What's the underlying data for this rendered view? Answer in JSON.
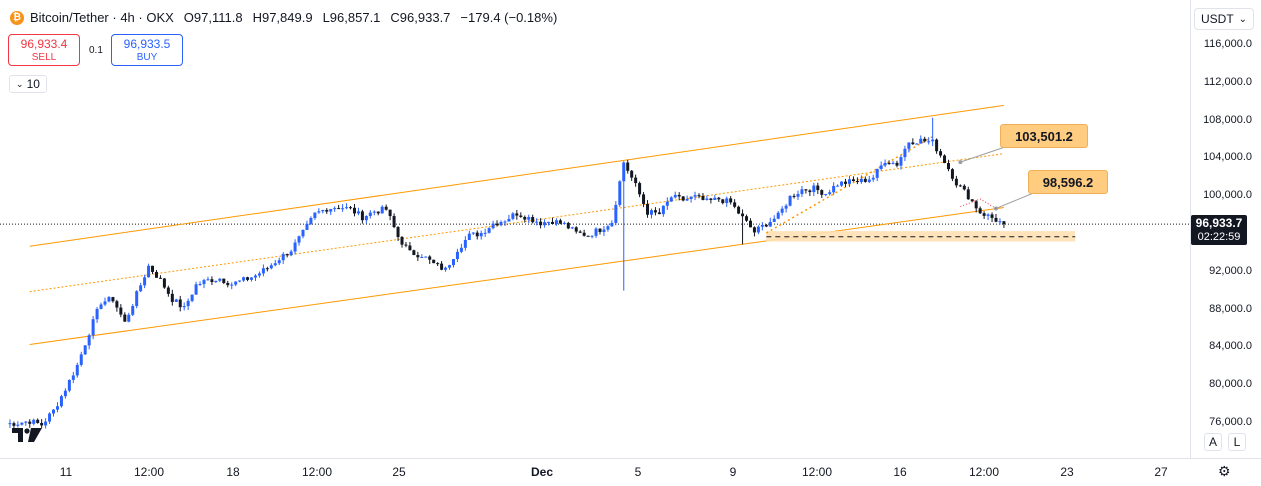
{
  "header": {
    "symbol_title": "Bitcoin/Tether · 4h · OKX",
    "open": "O97,111.8",
    "high": "H97,849.9",
    "low": "L96,857.1",
    "close": "C96,933.7",
    "change": "−179.4 (−0.18%)"
  },
  "trade": {
    "sell_price": "96,933.4",
    "sell_label": "SELL",
    "buy_price": "96,933.5",
    "buy_label": "BUY",
    "quantity": "0.1"
  },
  "interval_selector": "10",
  "currency": "USDT",
  "current_price": {
    "value": "96,933.7",
    "countdown": "02:22:59"
  },
  "price_axis_labels": [
    "116,000.0",
    "112,000.0",
    "108,000.0",
    "104,000.0",
    "100,000.0",
    "96,000.0",
    "92,000.0",
    "88,000.0",
    "84,000.0",
    "80,000.0",
    "76,000.0"
  ],
  "time_axis_labels": [
    {
      "label": "11",
      "bold": false
    },
    {
      "label": "12:00",
      "bold": false
    },
    {
      "label": "18",
      "bold": false
    },
    {
      "label": "12:00",
      "bold": false
    },
    {
      "label": "25",
      "bold": false
    },
    {
      "label": "Dec",
      "bold": true
    },
    {
      "label": "5",
      "bold": false
    },
    {
      "label": "9",
      "bold": false
    },
    {
      "label": "12:00",
      "bold": false
    },
    {
      "label": "16",
      "bold": false
    },
    {
      "label": "12:00",
      "bold": false
    },
    {
      "label": "23",
      "bold": false
    },
    {
      "label": "27",
      "bold": false
    }
  ],
  "scale_buttons": {
    "auto": "A",
    "log": "L"
  },
  "annotations": [
    {
      "text": "103,501.2"
    },
    {
      "text": "98,596.2"
    }
  ],
  "colors": {
    "up": "#2962ff",
    "down": "#131722",
    "channel": "#ff9800",
    "zone": "#ffe0b2",
    "sell": "#f23645",
    "buy": "#2962ff"
  },
  "chart_data": {
    "type": "candlestick",
    "symbol": "Bitcoin/Tether",
    "timeframe": "4h",
    "exchange": "OKX",
    "ylim": [
      73500,
      118500
    ],
    "last_close": 96933.7,
    "anchors": [
      [
        0,
        75800
      ],
      [
        3,
        75900
      ],
      [
        6,
        76100
      ],
      [
        9,
        75700
      ],
      [
        12,
        77200
      ],
      [
        15,
        79500
      ],
      [
        18,
        82000
      ],
      [
        21,
        85500
      ],
      [
        24,
        88700
      ],
      [
        27,
        89000
      ],
      [
        30,
        86500
      ],
      [
        33,
        89500
      ],
      [
        36,
        92500
      ],
      [
        39,
        91000
      ],
      [
        42,
        89000
      ],
      [
        45,
        88000
      ],
      [
        48,
        90500
      ],
      [
        51,
        91000
      ],
      [
        54,
        91200
      ],
      [
        57,
        90600
      ],
      [
        60,
        91000
      ],
      [
        63,
        91500
      ],
      [
        66,
        92300
      ],
      [
        69,
        93300
      ],
      [
        72,
        94200
      ],
      [
        75,
        96000
      ],
      [
        78,
        98000
      ],
      [
        81,
        98600
      ],
      [
        84,
        98800
      ],
      [
        87,
        98500
      ],
      [
        90,
        97700
      ],
      [
        93,
        98300
      ],
      [
        96,
        98500
      ],
      [
        99,
        95600
      ],
      [
        102,
        93900
      ],
      [
        105,
        93700
      ],
      [
        108,
        92700
      ],
      [
        111,
        92100
      ],
      [
        114,
        94300
      ],
      [
        117,
        95700
      ],
      [
        120,
        96000
      ],
      [
        123,
        97000
      ],
      [
        126,
        97400
      ],
      [
        129,
        98100
      ],
      [
        132,
        97600
      ],
      [
        135,
        97100
      ],
      [
        138,
        97300
      ],
      [
        141,
        96900
      ],
      [
        144,
        96000
      ],
      [
        147,
        95800
      ],
      [
        150,
        96400
      ],
      [
        153,
        97200
      ],
      [
        156,
        103500
      ],
      [
        159,
        101000
      ],
      [
        162,
        98200
      ],
      [
        165,
        98000
      ],
      [
        168,
        99800
      ],
      [
        171,
        99500
      ],
      [
        174,
        99800
      ],
      [
        177,
        99300
      ],
      [
        180,
        99600
      ],
      [
        183,
        99200
      ],
      [
        186,
        97600
      ],
      [
        189,
        96100
      ],
      [
        192,
        97000
      ],
      [
        195,
        97800
      ],
      [
        198,
        99800
      ],
      [
        201,
        100600
      ],
      [
        204,
        100700
      ],
      [
        207,
        100200
      ],
      [
        210,
        101200
      ],
      [
        213,
        101400
      ],
      [
        216,
        101500
      ],
      [
        219,
        101900
      ],
      [
        222,
        103700
      ],
      [
        225,
        103300
      ],
      [
        228,
        105700
      ],
      [
        231,
        105800
      ],
      [
        234,
        105600
      ],
      [
        237,
        103600
      ],
      [
        240,
        101300
      ],
      [
        243,
        99900
      ],
      [
        246,
        98200
      ],
      [
        249,
        97600
      ],
      [
        252,
        96933.7
      ]
    ],
    "wicks": [
      {
        "bar": 156,
        "low": 89900,
        "high": 103600
      },
      {
        "bar": 186,
        "low": 94800,
        "high": 98500
      },
      {
        "bar": 234,
        "low": 105200,
        "high": 108200
      }
    ],
    "channel": {
      "upper": [
        [
          6,
          94600
        ],
        [
          252,
          109500
        ]
      ],
      "middle": [
        [
          6,
          89800
        ],
        [
          252,
          104400
        ]
      ],
      "lower": [
        [
          6,
          84200
        ],
        [
          252,
          98700
        ]
      ]
    },
    "trendline": [
      [
        192,
        96000
      ],
      [
        234,
        106200
      ]
    ],
    "support_zone": {
      "from_bar": 192,
      "to_bar": 270,
      "low": 95100,
      "high": 96200,
      "line": 95600
    },
    "callouts": [
      {
        "text": "103,501.2",
        "value": 103501.2,
        "bar": 241
      },
      {
        "text": "98,596.2",
        "value": 98596.2,
        "bar": 250
      }
    ]
  }
}
